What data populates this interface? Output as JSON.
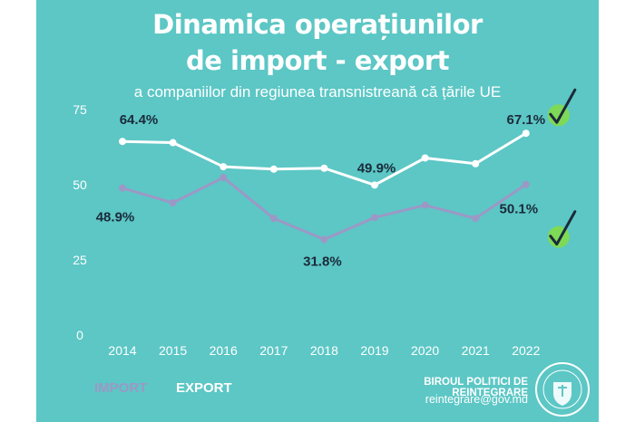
{
  "header": {
    "title_line1": "Dinamica operațiunilor",
    "title_line2": "de import - export",
    "subtitle": "a companiilor din regiunea transnistreană că țările UE"
  },
  "legend": {
    "import": "IMPORT",
    "export": "EXPORT"
  },
  "footer": {
    "organization": "BIROUL POLITICI DE REINTEGRARE",
    "email": "reintegrare@gov.md"
  },
  "colors": {
    "background": "#5cc7c5",
    "export": "#ffffff",
    "import": "#9c98c6",
    "labels": "#1b2a3a",
    "check": "#7ed957"
  },
  "chart_data": {
    "type": "line",
    "x": [
      "2014",
      "2015",
      "2016",
      "2017",
      "2018",
      "2019",
      "2020",
      "2021",
      "2022"
    ],
    "yticks": [
      "0",
      "25",
      "50",
      "75"
    ],
    "ylim": [
      0,
      75
    ],
    "grid": false,
    "series": [
      {
        "name": "EXPORT",
        "values": [
          64.4,
          64.0,
          56.0,
          55.2,
          55.5,
          49.9,
          58.9,
          57.0,
          67.1
        ]
      },
      {
        "name": "IMPORT",
        "values": [
          48.9,
          44.0,
          52.4,
          38.8,
          31.8,
          39.1,
          43.2,
          38.8,
          50.1
        ]
      }
    ],
    "data_labels": [
      {
        "series": 0,
        "index": 0,
        "text": "64.4%"
      },
      {
        "series": 0,
        "index": 5,
        "text": "49.9%"
      },
      {
        "series": 0,
        "index": 8,
        "text": "67.1%"
      },
      {
        "series": 1,
        "index": 0,
        "text": "48.9%"
      },
      {
        "series": 1,
        "index": 4,
        "text": "31.8%"
      },
      {
        "series": 1,
        "index": 8,
        "text": "50.1%"
      }
    ]
  }
}
